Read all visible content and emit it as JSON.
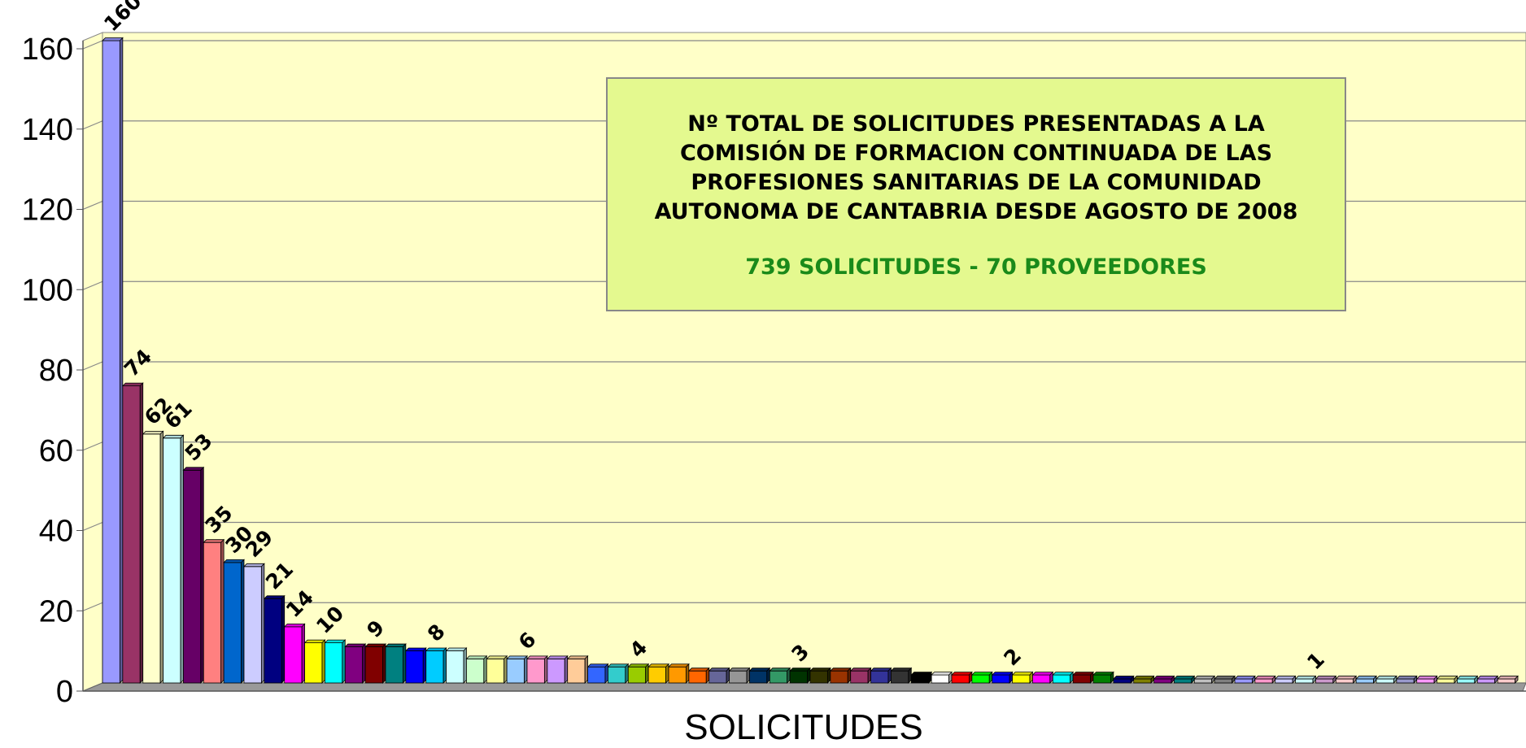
{
  "chart_data": {
    "type": "bar3d",
    "title": "Nº TOTAL DE SOLICITUDES PRESENTADAS A LA COMISIÓN DE FORMACION CONTINUADA DE LAS PROFESIONES SANITARIAS DE LA COMUNIDAD AUTONOMA DE CANTABRIA DESDE AGOSTO DE 2008",
    "subtitle": "739 SOLICITUDES - 70 PROVEEDORES",
    "xlabel": "SOLICITUDES",
    "values": [
      160,
      74,
      62,
      61,
      53,
      35,
      30,
      29,
      21,
      14,
      10,
      10,
      9,
      9,
      9,
      8,
      8,
      8,
      6,
      6,
      6,
      6,
      6,
      6,
      4,
      4,
      4,
      4,
      4,
      3,
      3,
      3,
      3,
      3,
      3,
      3,
      3,
      3,
      3,
      3,
      2,
      2,
      2,
      2,
      2,
      2,
      2,
      2,
      2,
      2,
      1,
      1,
      1,
      1,
      1,
      1,
      1,
      1,
      1,
      1,
      1,
      1,
      1,
      1,
      1,
      1,
      1,
      1,
      1,
      1
    ],
    "colors": [
      "#9999ff",
      "#993366",
      "#ffffcc",
      "#ccffff",
      "#660066",
      "#ff8080",
      "#0066cc",
      "#ccccff",
      "#000080",
      "#ff00ff",
      "#ffff00",
      "#00ffff",
      "#800080",
      "#800000",
      "#008080",
      "#0000ff",
      "#00ccff",
      "#ccffff",
      "#ccffcc",
      "#ffff99",
      "#99ccff",
      "#ff99cc",
      "#cc99ff",
      "#ffcc99",
      "#3366ff",
      "#33cccc",
      "#99cc00",
      "#ffcc00",
      "#ff9900",
      "#ff6600",
      "#666699",
      "#969696",
      "#003366",
      "#339966",
      "#003300",
      "#333300",
      "#993300",
      "#993366",
      "#333399",
      "#333333",
      "#000000",
      "#ffffff",
      "#ff0000",
      "#00ff00",
      "#0000ff",
      "#ffff00",
      "#ff00ff",
      "#00ffff",
      "#800000",
      "#008000",
      "#000080",
      "#808000",
      "#800080",
      "#008080",
      "#c0c0c0",
      "#808080",
      "#9999ff",
      "#ff99cc",
      "#ccccff",
      "#ccffff",
      "#cc99cc",
      "#ffcccc",
      "#99ccff",
      "#ccffff",
      "#9999cc",
      "#ff99ff",
      "#ffff99",
      "#99ffff",
      "#cc99ff",
      "#ffcccc"
    ],
    "ylim": [
      0,
      160
    ],
    "yticks": [
      0,
      20,
      40,
      60,
      80,
      100,
      120,
      140,
      160
    ],
    "grid": true
  }
}
